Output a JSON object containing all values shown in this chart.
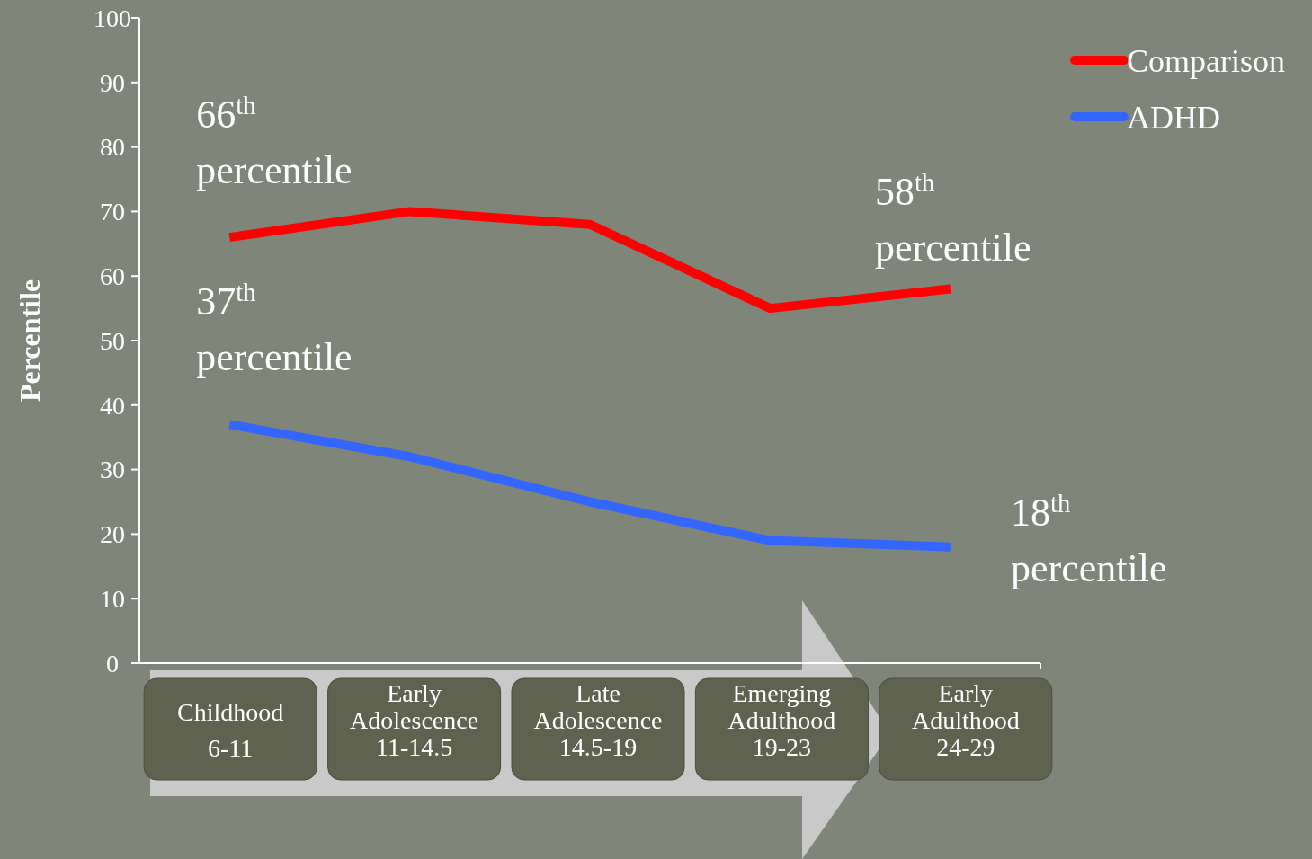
{
  "chart_data": {
    "type": "line",
    "ylabel": "Percentile",
    "categories": [
      "Childhood\n6-11",
      "Early\nAdolescence\n11-14.5",
      "Late\nAdolescence\n14.5-19",
      "Emerging\nAdulthood\n19-23",
      "Early\nAdulthood\n24-29"
    ],
    "series": [
      {
        "name": "Comparison",
        "color": "#ff0000",
        "values": [
          66,
          70,
          68,
          55,
          58
        ]
      },
      {
        "name": "ADHD",
        "color": "#3366ff",
        "values": [
          37,
          32,
          25,
          19,
          18
        ]
      }
    ],
    "ylim": [
      0,
      100
    ],
    "yticks": [
      0,
      10,
      20,
      30,
      40,
      50,
      60,
      70,
      80,
      90,
      100
    ],
    "grid": false,
    "legend": "top right",
    "marker": "none",
    "line_style": "solid",
    "annotations": [
      {
        "text": "66$^{th}$\npercentile",
        "x": "Childhood\n6-11",
        "y": 66
      },
      {
        "text": "37$^{th}$\npercentile",
        "x": "Childhood\n6-11",
        "y": 37
      },
      "58$^{th}$\npercentile",
      "18$^{th}$\npercentile"
    ]
  }
}
